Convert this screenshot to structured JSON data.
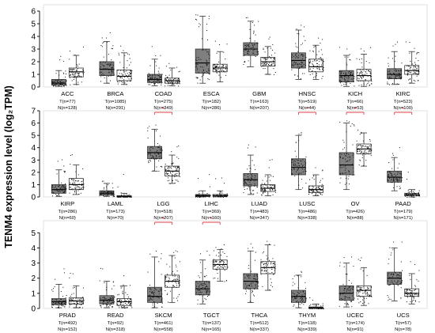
{
  "figure": {
    "ylabel": "TENM4 expression level (log₂TPM)"
  },
  "colors": {
    "tumor_fill": "#7f7f7f",
    "normal_fill": "#ffffff",
    "box_stroke": "#333333",
    "points": "#111111",
    "significance": "#e0404a"
  },
  "chart_data": [
    {
      "type": "box",
      "panel": 1,
      "ylim": [
        0,
        6.5
      ],
      "yticks": [
        0,
        1,
        2,
        3,
        4,
        5,
        6
      ],
      "categories": [
        "ACC",
        "BRCA",
        "COAD",
        "ESCA",
        "GBM",
        "HNSC",
        "KICH",
        "KIRC"
      ],
      "tumor_n_labels": [
        "T(n=77)",
        "T(n=1085)",
        "T(n=275)",
        "T(n=182)",
        "T(n=163)",
        "T(n=519)",
        "T(n=66)",
        "T(n=523)"
      ],
      "normal_n_labels": [
        "N(n=128)",
        "N(n=291)",
        "N(n=349)",
        "N(n=286)",
        "N(n=207)",
        "N(n=44)",
        "N(n=53)",
        "N(n=100)"
      ],
      "series": [
        {
          "name": "T",
          "stats": [
            [
              0.05,
              0.15,
              0.3,
              0.6,
              1.3
            ],
            [
              0.3,
              0.9,
              1.4,
              2.0,
              3.6
            ],
            [
              0.1,
              0.35,
              0.6,
              1.0,
              2.2
            ],
            [
              0.3,
              1.1,
              1.9,
              3.0,
              5.6
            ],
            [
              1.6,
              2.5,
              3.0,
              3.5,
              5.2
            ],
            [
              0.6,
              1.5,
              2.1,
              2.7,
              4.5
            ],
            [
              0.05,
              0.4,
              0.9,
              1.3,
              2.5
            ],
            [
              0.2,
              0.65,
              1.0,
              1.45,
              2.8
            ]
          ]
        },
        {
          "name": "N",
          "stats": [
            [
              0.2,
              0.8,
              1.2,
              1.5,
              2.5
            ],
            [
              0.2,
              0.5,
              0.85,
              1.35,
              2.7
            ],
            [
              0.1,
              0.3,
              0.5,
              0.7,
              1.5
            ],
            [
              0.4,
              1.2,
              1.5,
              1.8,
              2.8
            ],
            [
              1.0,
              1.65,
              2.0,
              2.35,
              3.2
            ],
            [
              0.6,
              1.2,
              1.6,
              2.2,
              3.3
            ],
            [
              0.05,
              0.5,
              0.9,
              1.4,
              2.6
            ],
            [
              0.3,
              1.0,
              1.3,
              1.7,
              2.8
            ]
          ]
        }
      ],
      "significant": []
    },
    {
      "type": "box",
      "panel": 2,
      "ylim": [
        0,
        7
      ],
      "yticks": [
        0,
        1,
        2,
        3,
        4,
        5,
        6,
        7
      ],
      "categories": [
        "KIRP",
        "LAML",
        "LGG",
        "LIHC",
        "LUAD",
        "LUSC",
        "OV",
        "PAAD"
      ],
      "tumor_n_labels": [
        "T(n=286)",
        "T(n=173)",
        "T(n=518)",
        "T(n=369)",
        "T(n=483)",
        "T(n=486)",
        "T(n=426)",
        "T(n=179)"
      ],
      "normal_n_labels": [
        "N(n=60)",
        "N(n=70)",
        "N(n=207)",
        "N(n=160)",
        "N(n=347)",
        "N(n=338)",
        "N(n=88)",
        "N(n=171)"
      ],
      "series": [
        {
          "name": "T",
          "stats": [
            [
              0.05,
              0.3,
              0.6,
              1.0,
              2.2
            ],
            [
              0.05,
              0.15,
              0.3,
              0.5,
              1.1
            ],
            [
              2.1,
              3.1,
              3.6,
              4.1,
              5.5
            ],
            [
              0.0,
              0.05,
              0.1,
              0.2,
              0.5
            ],
            [
              0.2,
              0.9,
              1.4,
              1.9,
              3.4
            ],
            [
              0.6,
              1.8,
              2.4,
              3.1,
              5.0
            ],
            [
              0.6,
              1.8,
              2.6,
              3.6,
              6.0
            ],
            [
              0.5,
              1.2,
              1.6,
              2.1,
              3.2
            ]
          ]
        },
        {
          "name": "N",
          "stats": [
            [
              0.2,
              0.6,
              1.0,
              1.5,
              2.6
            ],
            [
              0.0,
              0.02,
              0.05,
              0.1,
              0.3
            ],
            [
              1.1,
              1.7,
              2.1,
              2.5,
              3.4
            ],
            [
              0.0,
              0.05,
              0.1,
              0.2,
              0.5
            ],
            [
              0.1,
              0.45,
              0.7,
              1.0,
              1.8
            ],
            [
              0.1,
              0.35,
              0.6,
              0.9,
              1.8
            ],
            [
              2.5,
              3.5,
              3.9,
              4.3,
              5.2
            ],
            [
              0.0,
              0.1,
              0.2,
              0.3,
              0.6
            ]
          ]
        }
      ],
      "significant": [
        2,
        5,
        6,
        7
      ]
    },
    {
      "type": "box",
      "panel": 3,
      "ylim": [
        0,
        5.8
      ],
      "yticks": [
        0,
        1,
        2,
        3,
        4,
        5
      ],
      "categories": [
        "PRAD",
        "READ",
        "SKCM",
        "TGCT",
        "THCA",
        "THYM",
        "UCEC",
        "UCS"
      ],
      "tumor_n_labels": [
        "T(n=492)",
        "T(n=92)",
        "T(n=461)",
        "T(n=137)",
        "T(n=512)",
        "T(n=118)",
        "T(n=174)",
        "T(n=57)"
      ],
      "normal_n_labels": [
        "N(n=152)",
        "N(n=318)",
        "N(n=558)",
        "N(n=165)",
        "N(n=337)",
        "N(n=339)",
        "N(n=91)",
        "N(n=78)"
      ],
      "series": [
        {
          "name": "T",
          "stats": [
            [
              0.05,
              0.25,
              0.45,
              0.65,
              1.6
            ],
            [
              0.05,
              0.3,
              0.55,
              0.85,
              1.8
            ],
            [
              0.05,
              0.4,
              0.8,
              1.4,
              3.4
            ],
            [
              0.3,
              0.9,
              1.3,
              1.8,
              3.2
            ],
            [
              0.4,
              1.3,
              1.8,
              2.3,
              3.8
            ],
            [
              0.05,
              0.4,
              0.8,
              1.2,
              2.2
            ],
            [
              0.1,
              0.55,
              1.0,
              1.5,
              3.0
            ],
            [
              0.5,
              1.6,
              2.0,
              2.4,
              4.0
            ]
          ]
        },
        {
          "name": "N",
          "stats": [
            [
              0.05,
              0.3,
              0.5,
              0.7,
              1.5
            ],
            [
              0.05,
              0.2,
              0.45,
              0.65,
              1.5
            ],
            [
              0.4,
              1.4,
              1.8,
              2.2,
              3.5
            ],
            [
              1.8,
              2.6,
              2.9,
              3.2,
              3.9
            ],
            [
              1.2,
              2.3,
              2.7,
              3.1,
              4.2
            ],
            [
              0.0,
              0.02,
              0.05,
              0.1,
              0.3
            ],
            [
              0.2,
              0.8,
              1.2,
              1.5,
              2.7
            ],
            [
              0.3,
              0.8,
              1.0,
              1.3,
              2.3
            ]
          ]
        }
      ],
      "significant": [
        2,
        3
      ]
    }
  ]
}
